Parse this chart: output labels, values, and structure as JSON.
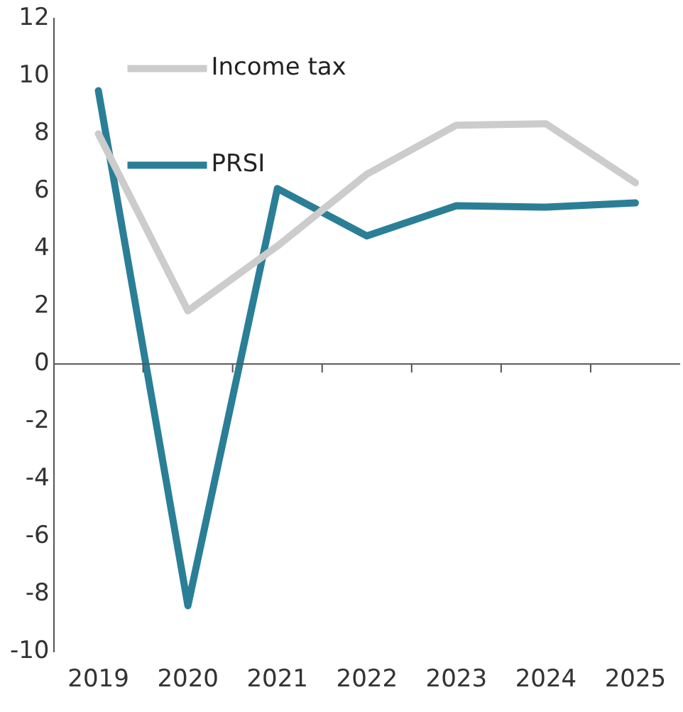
{
  "chart_data": {
    "type": "line",
    "categories": [
      "2019",
      "2020",
      "2021",
      "2022",
      "2023",
      "2024",
      "2025"
    ],
    "series": [
      {
        "name": "Income tax",
        "color": "#cccccc",
        "values": [
          8.0,
          1.85,
          4.1,
          6.6,
          8.3,
          8.35,
          6.3
        ]
      },
      {
        "name": "PRSI",
        "color": "#2a7f96",
        "values": [
          9.5,
          -8.4,
          6.1,
          4.45,
          5.5,
          5.45,
          5.6
        ]
      }
    ],
    "ylim": [
      -10,
      12
    ],
    "yticks": [
      -10,
      -8,
      -6,
      -4,
      -2,
      0,
      2,
      4,
      6,
      8,
      10,
      12
    ],
    "ref_lines": [
      {
        "axis": "y",
        "value": 0,
        "color": "#555555"
      }
    ],
    "grid": false,
    "legend": "top left",
    "marker": "none",
    "line_style": "solid"
  }
}
